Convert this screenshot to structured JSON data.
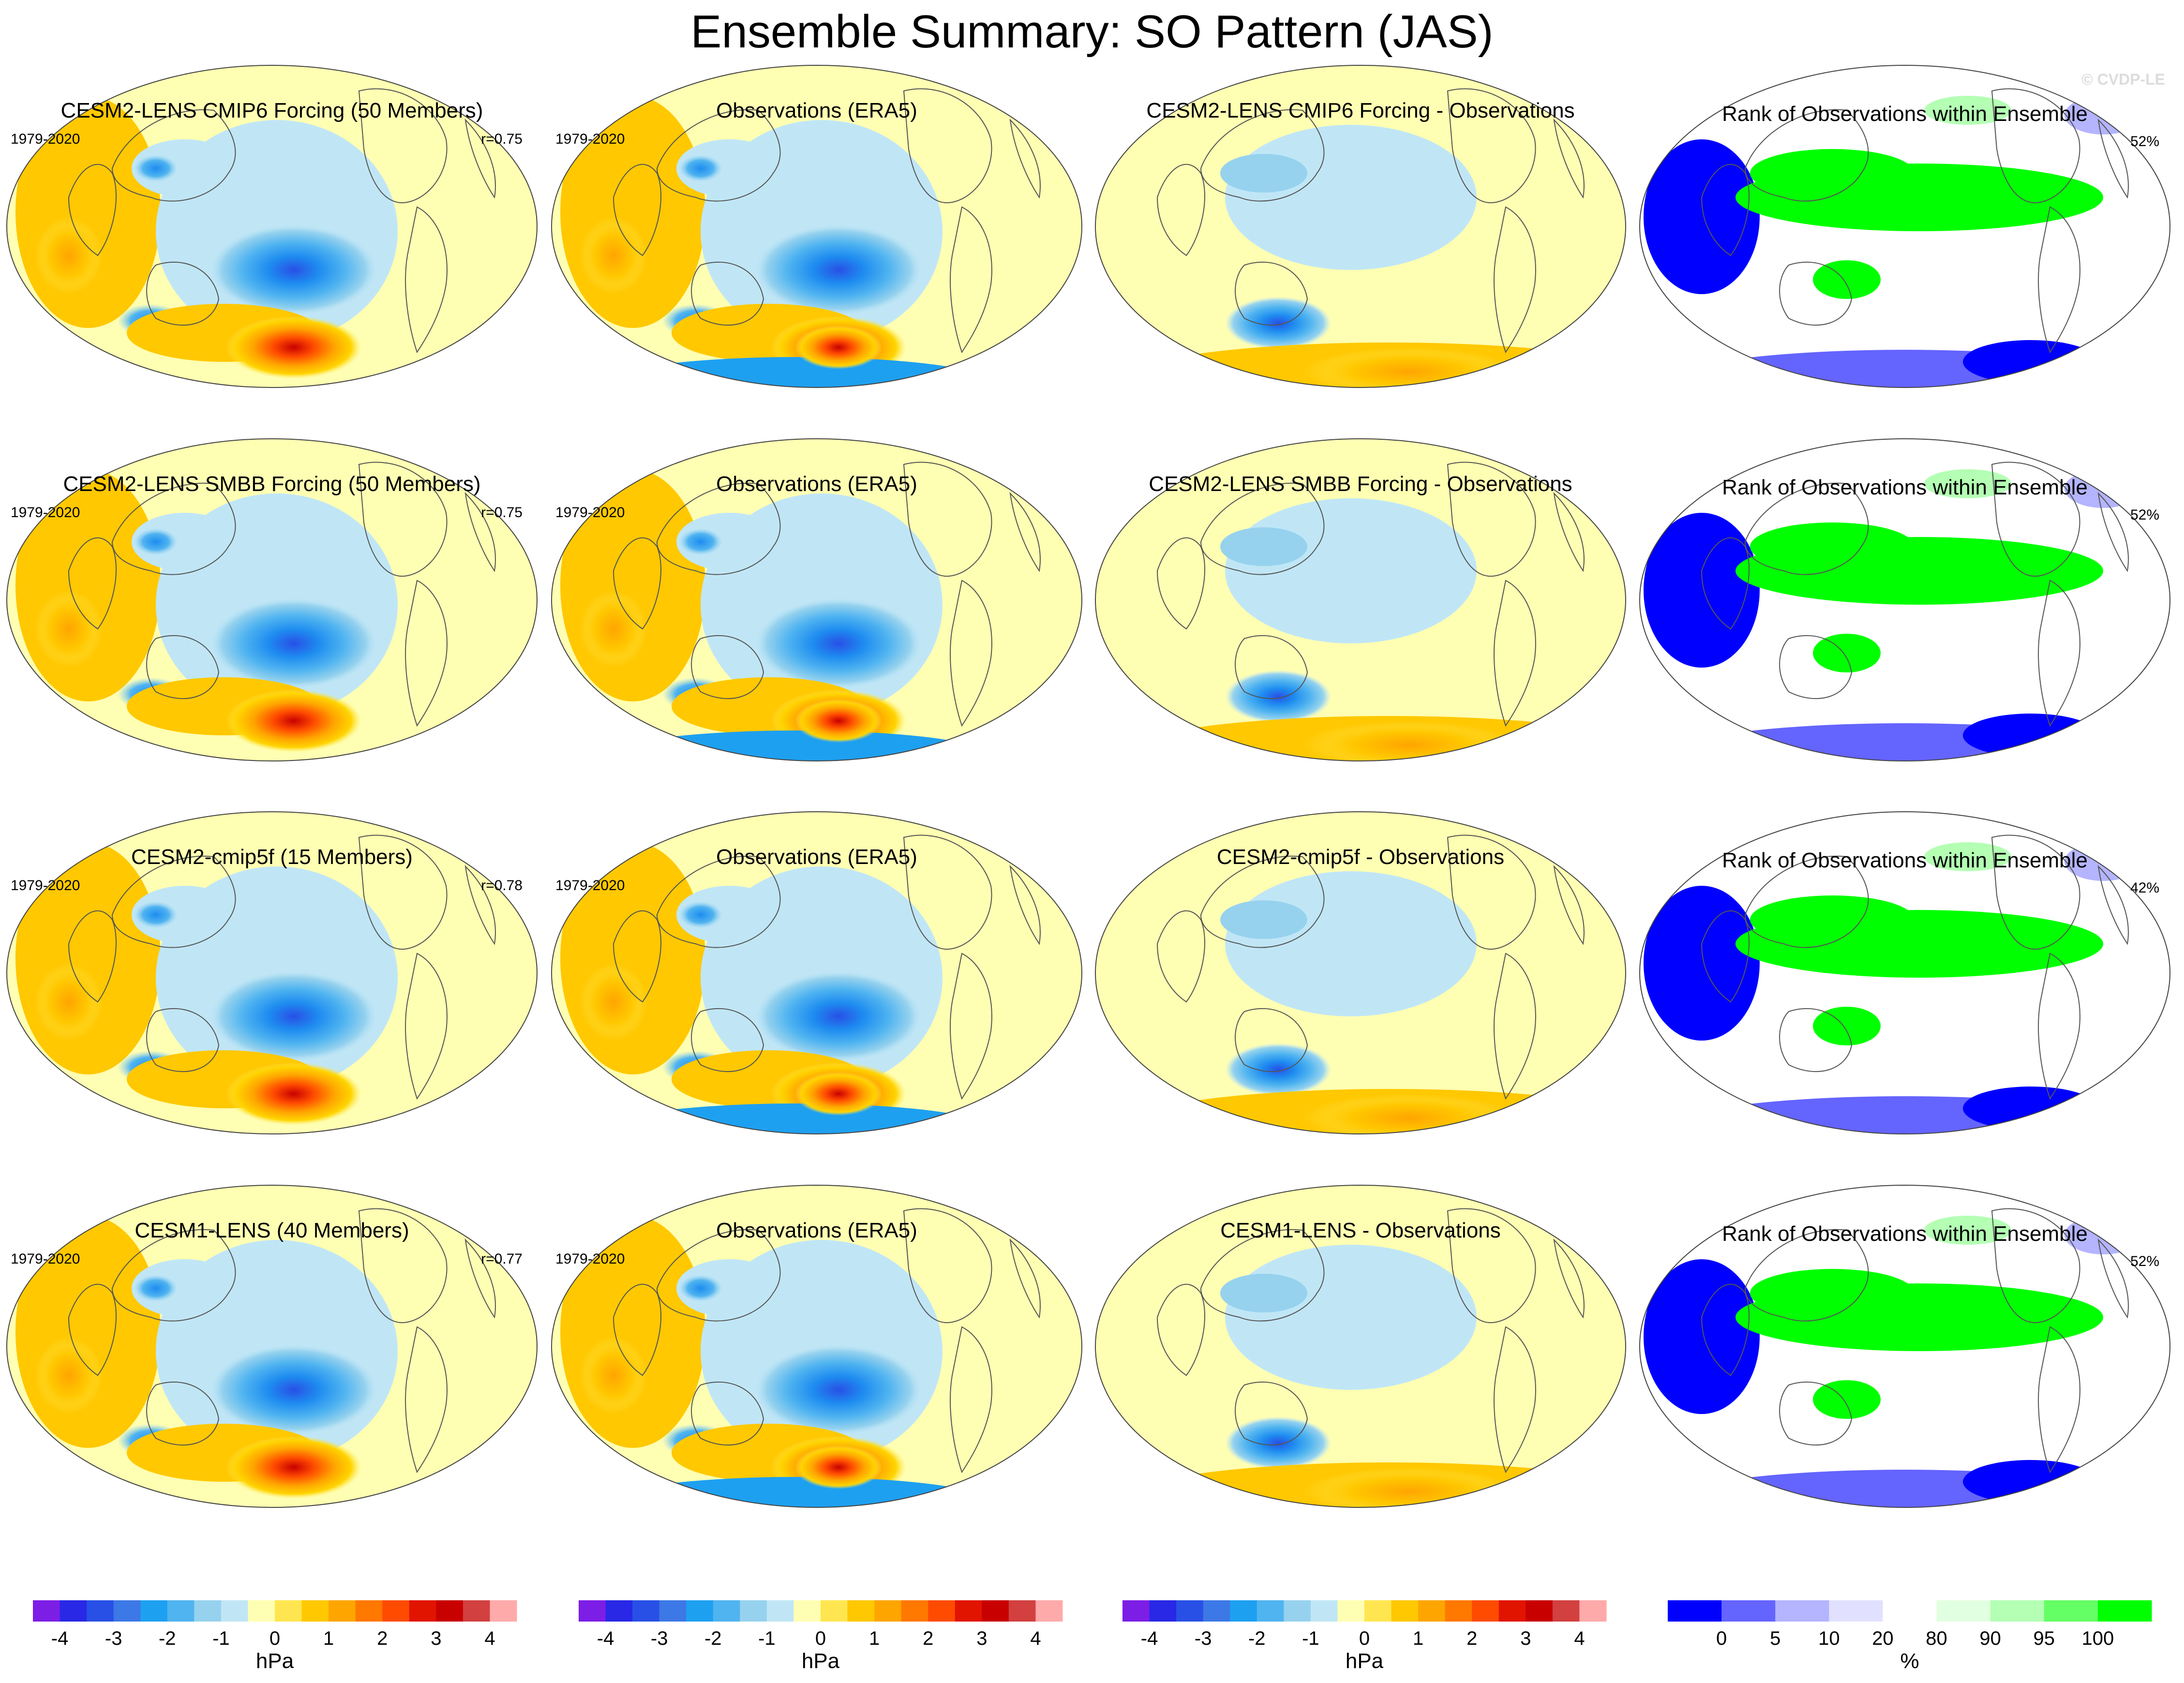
{
  "figure": {
    "title": "Ensemble Summary: SO Pattern (JAS)",
    "watermark": "© CVDP-LE"
  },
  "colors": {
    "map_background": "#ffffb3",
    "continent_line": "#555555",
    "slp_palette": [
      "#7d1ee6",
      "#2828e6",
      "#2850e6",
      "#3c78e6",
      "#1ea0f0",
      "#50b4f0",
      "#96d2ee",
      "#c0e6f6",
      "#ffffb3",
      "#ffe650",
      "#ffc800",
      "#ffa500",
      "#ff7800",
      "#ff4b00",
      "#e11400",
      "#c80000",
      "#d24040",
      "#ffaaaa"
    ],
    "rank_palette": [
      "#0000ff",
      "#6464ff",
      "#b4b4ff",
      "#e1e1ff",
      "#ffffff",
      "#e1ffe1",
      "#b4ffb4",
      "#64ff64",
      "#00ff00"
    ]
  },
  "rows": [
    {
      "model": {
        "title": "CESM2-LENS CMIP6 Forcing (50 Members)",
        "period": "1979-2020",
        "corr": "r=0.75"
      },
      "obs": {
        "title": "Observations (ERA5)",
        "period": "1979-2020"
      },
      "diff": {
        "title": "CESM2-LENS CMIP6 Forcing - Observations"
      },
      "rank": {
        "title": "Rank of Observations within Ensemble",
        "pct": "52%"
      }
    },
    {
      "model": {
        "title": "CESM2-LENS SMBB Forcing (50 Members)",
        "period": "1979-2020",
        "corr": "r=0.75"
      },
      "obs": {
        "title": "Observations (ERA5)",
        "period": "1979-2020"
      },
      "diff": {
        "title": "CESM2-LENS SMBB Forcing - Observations"
      },
      "rank": {
        "title": "Rank of Observations within Ensemble",
        "pct": "52%"
      }
    },
    {
      "model": {
        "title": "CESM2-cmip5f (15 Members)",
        "period": "1979-2020",
        "corr": "r=0.78"
      },
      "obs": {
        "title": "Observations (ERA5)",
        "period": "1979-2020"
      },
      "diff": {
        "title": "CESM2-cmip5f - Observations"
      },
      "rank": {
        "title": "Rank of Observations within Ensemble",
        "pct": "42%"
      }
    },
    {
      "model": {
        "title": "CESM1-LENS (40 Members)",
        "period": "1979-2020",
        "corr": "r=0.77"
      },
      "obs": {
        "title": "Observations (ERA5)",
        "period": "1979-2020"
      },
      "diff": {
        "title": "CESM1-LENS - Observations"
      },
      "rank": {
        "title": "Rank of Observations within Ensemble",
        "pct": "52%"
      }
    }
  ],
  "colorbars": {
    "slp": {
      "unit": "hPa",
      "ticks": [
        "-4",
        "-3",
        "-2",
        "-1",
        "0",
        "1",
        "2",
        "3",
        "4"
      ]
    },
    "rank": {
      "unit": "%",
      "ticks": [
        "0",
        "5",
        "10",
        "20",
        "80",
        "90",
        "95",
        "100"
      ]
    }
  }
}
